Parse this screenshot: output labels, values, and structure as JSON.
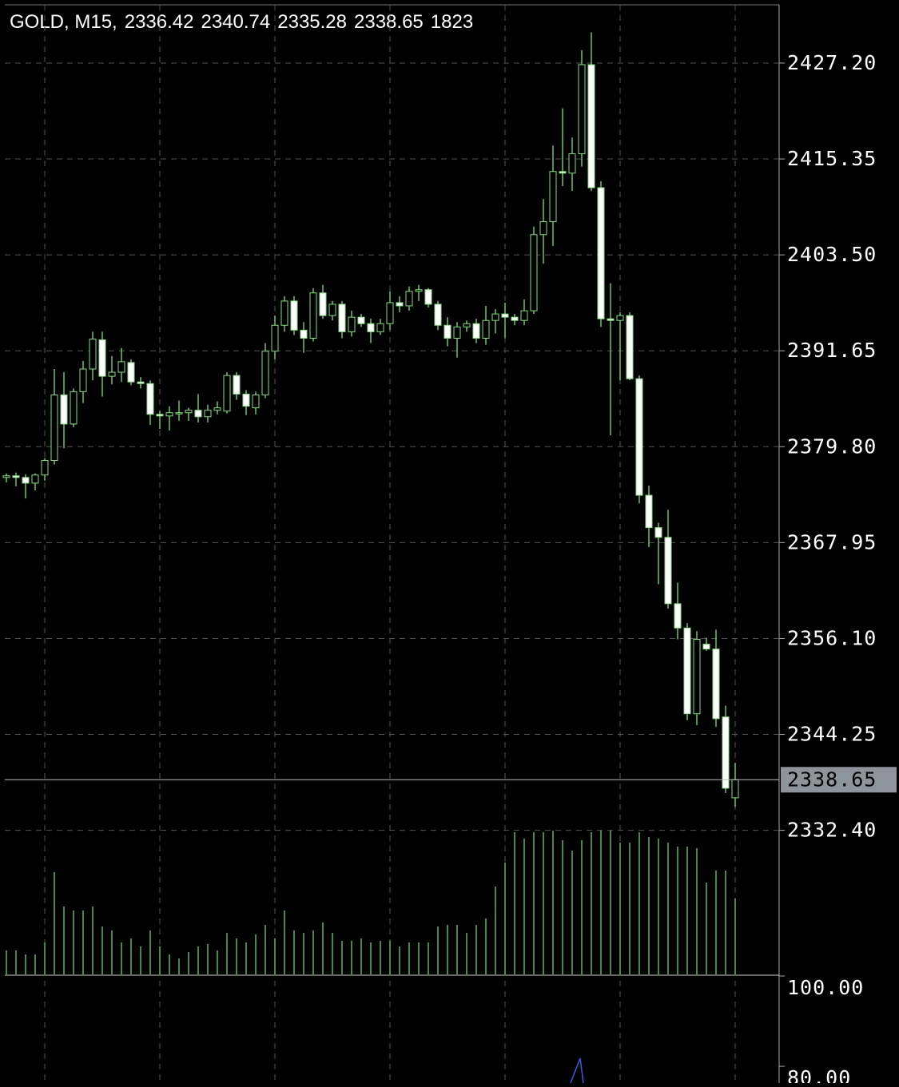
{
  "chart_data": {
    "type": "candlestick",
    "instrument": "GOLD, M15,",
    "open": [
      2376.0,
      2376.2,
      2376.0,
      2375.3,
      2376.3,
      2378.1,
      2386.2,
      2382.6,
      2386.6,
      2389.4,
      2393.0,
      2388.5,
      2389.0,
      2390.2,
      2387.8,
      2387.6,
      2383.8,
      2383.6,
      2384.0,
      2384.0,
      2384.3,
      2383.5,
      2384.3,
      2384.2,
      2388.6,
      2386.3,
      2384.6,
      2386.2,
      2391.6,
      2394.8,
      2397.8,
      2394.2,
      2393.2,
      2398.8,
      2396.0,
      2397.4,
      2394.0,
      2395.8,
      2395.0,
      2394.0,
      2395.0,
      2397.6,
      2397.2,
      2399.0,
      2399.2,
      2397.4,
      2394.8,
      2393.2,
      2394.6,
      2395.0,
      2393.2,
      2395.4,
      2396.2,
      2395.8,
      2395.4,
      2396.6,
      2406.0,
      2407.6,
      2413.8,
      2413.6,
      2416.0,
      2427.0,
      2411.8,
      2395.6,
      2395.4,
      2396.0,
      2388.2,
      2373.8,
      2369.8,
      2368.6,
      2360.4,
      2357.4,
      2346.8,
      2355.4,
      2354.8,
      2346.4,
      2336.42
    ],
    "high": [
      2376.5,
      2376.6,
      2376.4,
      2376.5,
      2378.4,
      2389.4,
      2389.0,
      2387.0,
      2390.4,
      2394.0,
      2394.0,
      2391.0,
      2392.0,
      2390.6,
      2388.4,
      2388.0,
      2384.2,
      2384.8,
      2385.5,
      2384.6,
      2386.3,
      2385.0,
      2385.4,
      2389.0,
      2389.0,
      2386.8,
      2386.6,
      2392.6,
      2396.0,
      2398.4,
      2398.4,
      2395.2,
      2399.4,
      2399.8,
      2397.8,
      2397.8,
      2396.6,
      2396.2,
      2395.6,
      2395.6,
      2399.0,
      2398.4,
      2399.6,
      2399.8,
      2399.4,
      2397.8,
      2395.8,
      2395.2,
      2395.4,
      2395.6,
      2397.2,
      2396.8,
      2397.6,
      2396.2,
      2398.0,
      2407.0,
      2410.4,
      2417.0,
      2421.6,
      2418.0,
      2428.8,
      2431.0,
      2412.6,
      2400.0,
      2396.4,
      2396.4,
      2388.6,
      2375.0,
      2370.4,
      2372.0,
      2363.0,
      2358.0,
      2357.0,
      2356.2,
      2357.2,
      2347.8,
      2340.74
    ],
    "low": [
      2375.4,
      2374.9,
      2373.4,
      2374.4,
      2375.6,
      2377.6,
      2379.6,
      2382.2,
      2385.2,
      2388.0,
      2386.0,
      2387.5,
      2387.8,
      2387.4,
      2387.0,
      2382.5,
      2382.0,
      2381.8,
      2383.0,
      2383.0,
      2382.8,
      2382.8,
      2383.8,
      2383.9,
      2385.6,
      2383.7,
      2383.8,
      2385.8,
      2390.6,
      2394.0,
      2393.6,
      2391.4,
      2392.8,
      2395.6,
      2395.4,
      2393.2,
      2393.4,
      2394.6,
      2392.6,
      2393.6,
      2394.2,
      2396.4,
      2396.6,
      2397.8,
      2397.0,
      2394.2,
      2392.2,
      2390.8,
      2394.0,
      2392.6,
      2392.4,
      2393.8,
      2393.2,
      2394.8,
      2394.8,
      2396.2,
      2402.4,
      2404.6,
      2412.0,
      2411.4,
      2414.4,
      2411.4,
      2394.6,
      2381.2,
      2388.0,
      2388.0,
      2372.8,
      2367.4,
      2362.8,
      2359.8,
      2356.0,
      2346.0,
      2345.4,
      2354.6,
      2345.2,
      2337.0,
      2335.28
    ],
    "close": [
      2376.2,
      2376.0,
      2375.3,
      2376.3,
      2378.1,
      2386.2,
      2382.6,
      2386.6,
      2389.4,
      2393.1,
      2388.5,
      2389.0,
      2390.3,
      2387.8,
      2387.6,
      2383.8,
      2383.6,
      2384.0,
      2384.0,
      2384.3,
      2383.5,
      2384.3,
      2384.6,
      2388.6,
      2386.3,
      2384.8,
      2386.2,
      2391.6,
      2394.8,
      2397.8,
      2394.2,
      2393.2,
      2398.8,
      2396.0,
      2397.4,
      2394.0,
      2395.8,
      2395.0,
      2394.0,
      2395.0,
      2397.6,
      2397.2,
      2399.0,
      2399.2,
      2397.4,
      2394.8,
      2393.2,
      2394.6,
      2395.0,
      2393.2,
      2395.4,
      2396.2,
      2395.8,
      2395.4,
      2396.6,
      2406.0,
      2407.6,
      2413.8,
      2413.6,
      2416.0,
      2427.0,
      2411.8,
      2395.6,
      2395.4,
      2396.0,
      2388.2,
      2373.8,
      2369.8,
      2368.6,
      2360.4,
      2357.4,
      2346.8,
      2356.0,
      2354.8,
      2346.2,
      2337.6,
      2338.65
    ],
    "volume": [
      576,
      576,
      480,
      480,
      768,
      2458,
      1632,
      1536,
      1536,
      1632,
      1152,
      1056,
      768,
      864,
      672,
      1056,
      672,
      480,
      384,
      538,
      672,
      730,
      576,
      998,
      864,
      768,
      960,
      1190,
      864,
      1536,
      1056,
      998,
      1056,
      1248,
      998,
      806,
      806,
      864,
      768,
      806,
      806,
      672,
      768,
      768,
      768,
      1152,
      1190,
      1190,
      998,
      1190,
      1344,
      2112,
      2688,
      3418,
      3264,
      3418,
      3418,
      3456,
      3226,
      2976,
      3226,
      3418,
      3456,
      3456,
      3168,
      3168,
      3418,
      3302,
      3264,
      3168,
      3072,
      3072,
      3034,
      2208,
      2496,
      2496,
      1823
    ],
    "ylim": [
      2314.6,
      2434.4
    ],
    "yticks": [
      {
        "value": 2427.2,
        "label": "2427.20"
      },
      {
        "value": 2415.35,
        "label": "2415.35"
      },
      {
        "value": 2403.5,
        "label": "2403.50"
      },
      {
        "value": 2391.65,
        "label": "2391.65"
      },
      {
        "value": 2379.8,
        "label": "2379.80"
      },
      {
        "value": 2367.95,
        "label": "2367.95"
      },
      {
        "value": 2356.1,
        "label": "2356.10"
      },
      {
        "value": 2344.25,
        "label": "2344.25"
      },
      {
        "value": 2332.4,
        "label": "2332.40"
      }
    ],
    "grid": true,
    "bull_color": "#000000",
    "bear_color": "#ffffff",
    "line_color": "#7fe07a",
    "indicator": {
      "ylim": [
        76.3,
        100
      ],
      "yticks": [
        {
          "value": 100,
          "label": "100.00"
        },
        {
          "value": 80,
          "label": "80.00"
        }
      ]
    }
  }
}
